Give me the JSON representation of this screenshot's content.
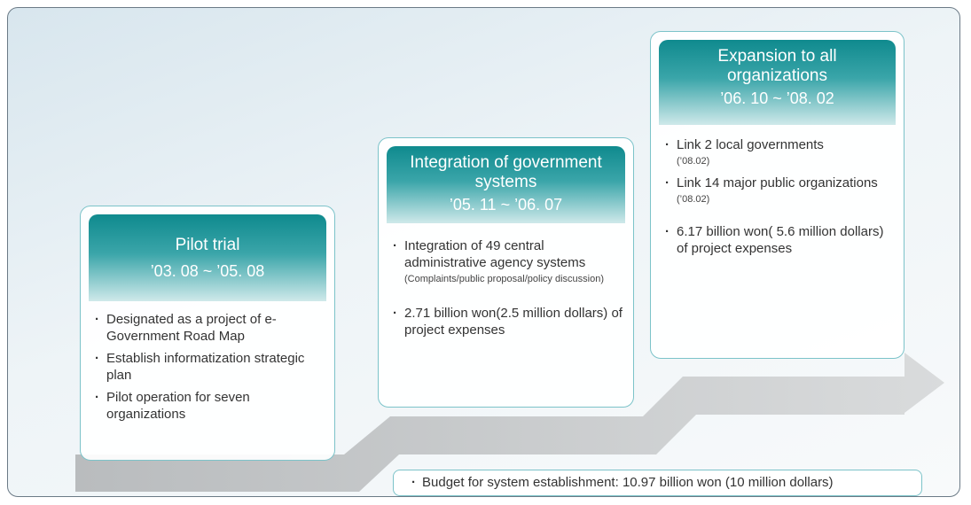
{
  "stages": [
    {
      "title": "Pilot trial",
      "date": "’03. 08 ~ ’05. 08",
      "bullets": [
        {
          "text": "Designated as a project of e-Government Road Map"
        },
        {
          "text": "Establish informatization strategic plan"
        },
        {
          "text": "Pilot operation for seven organizations"
        }
      ]
    },
    {
      "title": "Integration of government systems",
      "date": "’05. 11 ~ ’06. 07",
      "bullets": [
        {
          "text": "Integration of 49 central administrative agency systems",
          "note": "(Complaints/public proposal/policy discussion)"
        },
        {
          "text": "2.71 billion won(2.5 million dollars) of project expenses"
        }
      ]
    },
    {
      "title": "Expansion to all organizations",
      "date": "’06. 10 ~ ’08. 02",
      "bullets": [
        {
          "text": "Link 2 local governments",
          "note": "(’08.02)"
        },
        {
          "text": "Link 14 major public organizations",
          "note": "(’08.02)"
        },
        {
          "text": "6.17 billion won( 5.6 million dollars) of project expenses"
        }
      ]
    }
  ],
  "budget": "Budget for system establishment: 10.97 billion won (10 million dollars)"
}
